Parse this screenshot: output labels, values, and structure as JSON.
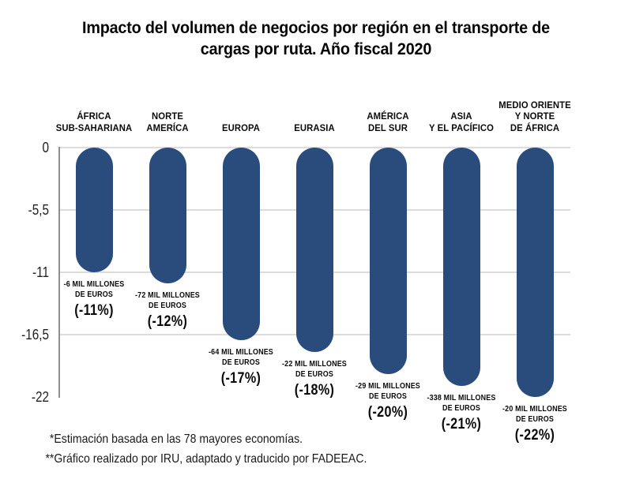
{
  "title": {
    "lines": [
      "Impacto del volumen de negocios por región en el transporte de",
      "cargas por ruta. Año fiscal 2020"
    ]
  },
  "chart_data": {
    "type": "bar",
    "title": "Impacto del volumen de negocios por región en el transporte de cargas por ruta. Año fiscal 2020",
    "xlabel": "",
    "ylabel": "",
    "ylim": [
      -22,
      0
    ],
    "grid": "horizontal",
    "legend": "none",
    "bar_color": "#2a4c7d",
    "gridline_color": "#dcdcdc",
    "axis_color": "#8f8f8f",
    "yticks": [
      {
        "label": "0",
        "value": 0,
        "gridline": true
      },
      {
        "label": "-5,5",
        "value": -5.5,
        "gridline": true
      },
      {
        "label": "-11",
        "value": -11,
        "gridline": true
      },
      {
        "label": "-16,5",
        "value": -16.5,
        "gridline": true
      },
      {
        "label": "-22",
        "value": -22,
        "gridline": false
      }
    ],
    "categories": [
      "ÁFRICA SUB-SAHARIANA",
      "NORTE AMERÍCA",
      "EUROPA",
      "EURASIA",
      "AMÉRICA DEL SUR",
      "ASIA Y EL PACÍFICO",
      "MEDIO ORIENTE Y NORTE DE ÁFRICA"
    ],
    "values": [
      -11,
      -12,
      -17,
      -18,
      -20,
      -21,
      -22
    ],
    "bars": [
      {
        "category_lines": [
          "ÁFRICA",
          "SUB-SAHARIANA"
        ],
        "value_pct": -11,
        "amount_lines": [
          "-6 MIL MILLONES",
          "DE EUROS"
        ],
        "pct_label": "(-11%)"
      },
      {
        "category_lines": [
          "NORTE",
          "AMERÍCA"
        ],
        "value_pct": -12,
        "amount_lines": [
          "-72 MIL MILLONES",
          "DE EUROS"
        ],
        "pct_label": "(-12%)"
      },
      {
        "category_lines": [
          "EUROPA"
        ],
        "value_pct": -17,
        "amount_lines": [
          "-64 MIL MILLONES",
          "DE EUROS"
        ],
        "pct_label": "(-17%)"
      },
      {
        "category_lines": [
          "EURASIA"
        ],
        "value_pct": -18,
        "amount_lines": [
          "-22 MIL MILLONES",
          "DE EUROS"
        ],
        "pct_label": "(-18%)"
      },
      {
        "category_lines": [
          "AMÉRICA",
          "DEL SUR"
        ],
        "value_pct": -20,
        "amount_lines": [
          "-29 MIL MILLONES",
          "DE EUROS"
        ],
        "pct_label": "(-20%)"
      },
      {
        "category_lines": [
          "ASIA",
          "Y EL PACÍFICO"
        ],
        "value_pct": -21,
        "amount_lines": [
          "-338 MIL MILLONES",
          "DE EUROS"
        ],
        "pct_label": "(-21%)"
      },
      {
        "category_lines": [
          "MEDIO ORIENTE",
          "Y NORTE",
          "DE ÁFRICA"
        ],
        "value_pct": -22,
        "amount_lines": [
          "-20 MIL MILLONES",
          "DE EUROS"
        ],
        "pct_label": "(-22%)"
      }
    ]
  },
  "footnotes": [
    {
      "marker": "*",
      "text": "Estimación basada en las 78 mayores economías."
    },
    {
      "marker": "**",
      "text": "Gráfico realizado por IRU, adaptado y traducido por FADEEAC."
    }
  ]
}
